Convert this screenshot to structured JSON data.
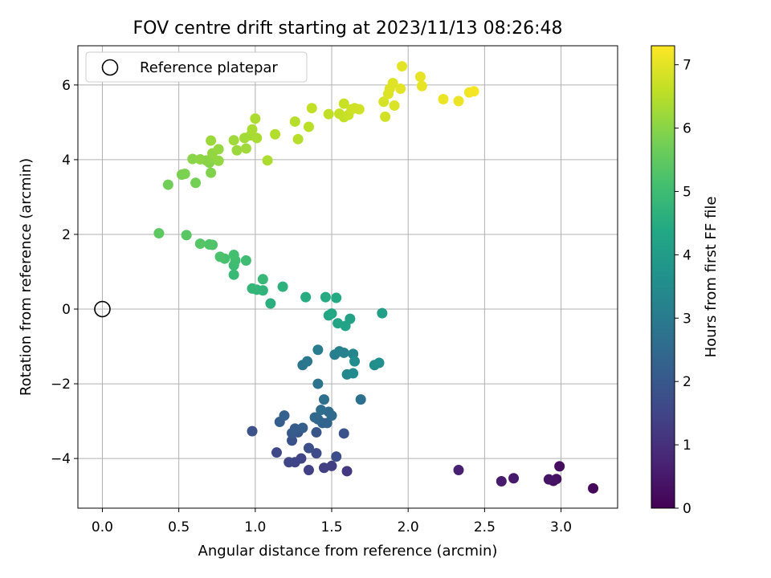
{
  "chart_data": {
    "type": "scatter",
    "title": "FOV centre drift starting at 2023/11/13 08:26:48",
    "xlabel": "Angular distance from reference (arcmin)",
    "ylabel": "Rotation from reference (arcmin)",
    "xlim": [
      -0.16,
      3.37
    ],
    "ylim": [
      -5.33,
      7.05
    ],
    "xticks": [
      "0.0",
      "0.5",
      "1.0",
      "1.5",
      "2.0",
      "2.5",
      "3.0"
    ],
    "xtick_values": [
      0,
      0.5,
      1.0,
      1.5,
      2.0,
      2.5,
      3.0
    ],
    "yticks": [
      "−4",
      "−2",
      "0",
      "2",
      "4",
      "6"
    ],
    "ytick_values": [
      -4,
      -2,
      0,
      2,
      4,
      6
    ],
    "grid": true,
    "legend": {
      "position": "top-left",
      "label": "Reference platepar"
    },
    "reference_point": {
      "x": 0.0,
      "y": 0.0
    },
    "colorbar": {
      "label": "Hours from first FF file",
      "range": [
        0,
        7.3
      ],
      "ticks": [
        "0",
        "1",
        "2",
        "3",
        "4",
        "5",
        "6",
        "7"
      ],
      "tick_values": [
        0,
        1,
        2,
        3,
        4,
        5,
        6,
        7
      ],
      "colormap": "viridis"
    },
    "points": [
      {
        "x": 3.21,
        "y": -4.8,
        "t": 0.15
      },
      {
        "x": 2.99,
        "y": -4.21,
        "t": 0.25
      },
      {
        "x": 2.97,
        "y": -4.55,
        "t": 0.3
      },
      {
        "x": 2.95,
        "y": -4.6,
        "t": 0.35
      },
      {
        "x": 2.92,
        "y": -4.56,
        "t": 0.4
      },
      {
        "x": 2.69,
        "y": -4.53,
        "t": 0.5
      },
      {
        "x": 2.61,
        "y": -4.61,
        "t": 0.55
      },
      {
        "x": 2.33,
        "y": -4.31,
        "t": 0.65
      },
      {
        "x": 1.6,
        "y": -4.34,
        "t": 1.2
      },
      {
        "x": 1.5,
        "y": -4.2,
        "t": 1.3
      },
      {
        "x": 1.45,
        "y": -4.25,
        "t": 1.35
      },
      {
        "x": 1.35,
        "y": -4.31,
        "t": 1.4
      },
      {
        "x": 1.3,
        "y": -4.0,
        "t": 1.45
      },
      {
        "x": 1.26,
        "y": -4.1,
        "t": 1.5
      },
      {
        "x": 1.22,
        "y": -4.1,
        "t": 1.55
      },
      {
        "x": 1.14,
        "y": -3.84,
        "t": 1.6
      },
      {
        "x": 1.4,
        "y": -3.86,
        "t": 1.65
      },
      {
        "x": 1.53,
        "y": -3.95,
        "t": 1.7
      },
      {
        "x": 1.35,
        "y": -3.72,
        "t": 1.75
      },
      {
        "x": 1.24,
        "y": -3.52,
        "t": 1.8
      },
      {
        "x": 0.98,
        "y": -3.27,
        "t": 1.85
      },
      {
        "x": 1.58,
        "y": -3.33,
        "t": 1.9
      },
      {
        "x": 1.4,
        "y": -3.3,
        "t": 1.95
      },
      {
        "x": 1.28,
        "y": -3.3,
        "t": 2.0
      },
      {
        "x": 1.24,
        "y": -3.32,
        "t": 2.05
      },
      {
        "x": 1.26,
        "y": -3.2,
        "t": 2.1
      },
      {
        "x": 1.31,
        "y": -3.18,
        "t": 2.15
      },
      {
        "x": 1.16,
        "y": -3.02,
        "t": 2.2
      },
      {
        "x": 1.19,
        "y": -2.85,
        "t": 2.25
      },
      {
        "x": 1.44,
        "y": -3.05,
        "t": 2.3
      },
      {
        "x": 1.47,
        "y": -3.05,
        "t": 2.35
      },
      {
        "x": 1.41,
        "y": -2.95,
        "t": 2.4
      },
      {
        "x": 1.39,
        "y": -2.9,
        "t": 2.45
      },
      {
        "x": 1.5,
        "y": -2.85,
        "t": 2.5
      },
      {
        "x": 1.48,
        "y": -2.75,
        "t": 2.55
      },
      {
        "x": 1.43,
        "y": -2.7,
        "t": 2.6
      },
      {
        "x": 1.45,
        "y": -2.42,
        "t": 2.65
      },
      {
        "x": 1.69,
        "y": -2.42,
        "t": 2.7
      },
      {
        "x": 1.41,
        "y": -2.0,
        "t": 2.75
      },
      {
        "x": 1.31,
        "y": -1.5,
        "t": 2.85
      },
      {
        "x": 1.34,
        "y": -1.4,
        "t": 2.9
      },
      {
        "x": 1.41,
        "y": -1.09,
        "t": 3.0
      },
      {
        "x": 1.52,
        "y": -1.22,
        "t": 3.1
      },
      {
        "x": 1.55,
        "y": -1.13,
        "t": 3.15
      },
      {
        "x": 1.58,
        "y": -1.17,
        "t": 3.2
      },
      {
        "x": 1.64,
        "y": -1.2,
        "t": 3.3
      },
      {
        "x": 1.6,
        "y": -1.75,
        "t": 3.4
      },
      {
        "x": 1.64,
        "y": -1.72,
        "t": 3.45
      },
      {
        "x": 1.65,
        "y": -1.4,
        "t": 3.5
      },
      {
        "x": 1.78,
        "y": -1.5,
        "t": 3.55
      },
      {
        "x": 1.81,
        "y": -1.44,
        "t": 3.6
      },
      {
        "x": 1.83,
        "y": -0.11,
        "t": 4.1
      },
      {
        "x": 1.62,
        "y": -0.26,
        "t": 4.15
      },
      {
        "x": 1.59,
        "y": -0.45,
        "t": 4.2
      },
      {
        "x": 1.54,
        "y": -0.38,
        "t": 4.25
      },
      {
        "x": 1.48,
        "y": -0.17,
        "t": 4.3
      },
      {
        "x": 1.5,
        "y": -0.12,
        "t": 4.35
      },
      {
        "x": 1.53,
        "y": 0.3,
        "t": 4.4
      },
      {
        "x": 1.46,
        "y": 0.32,
        "t": 4.45
      },
      {
        "x": 1.33,
        "y": 0.32,
        "t": 4.5
      },
      {
        "x": 1.1,
        "y": 0.15,
        "t": 4.6
      },
      {
        "x": 1.18,
        "y": 0.6,
        "t": 4.65
      },
      {
        "x": 1.05,
        "y": 0.5,
        "t": 4.7
      },
      {
        "x": 1.01,
        "y": 0.52,
        "t": 4.75
      },
      {
        "x": 0.98,
        "y": 0.55,
        "t": 4.8
      },
      {
        "x": 1.05,
        "y": 0.8,
        "t": 4.85
      },
      {
        "x": 0.86,
        "y": 0.92,
        "t": 4.9
      },
      {
        "x": 0.86,
        "y": 1.17,
        "t": 4.95
      },
      {
        "x": 0.94,
        "y": 1.3,
        "t": 5.0
      },
      {
        "x": 0.87,
        "y": 1.3,
        "t": 5.05
      },
      {
        "x": 0.86,
        "y": 1.45,
        "t": 5.1
      },
      {
        "x": 0.8,
        "y": 1.35,
        "t": 5.15
      },
      {
        "x": 0.77,
        "y": 1.4,
        "t": 5.2
      },
      {
        "x": 0.72,
        "y": 1.72,
        "t": 5.25
      },
      {
        "x": 0.7,
        "y": 1.73,
        "t": 5.3
      },
      {
        "x": 0.64,
        "y": 1.75,
        "t": 5.35
      },
      {
        "x": 0.55,
        "y": 1.98,
        "t": 5.4
      },
      {
        "x": 0.37,
        "y": 2.03,
        "t": 5.45
      },
      {
        "x": 0.43,
        "y": 3.33,
        "t": 5.7
      },
      {
        "x": 0.61,
        "y": 3.38,
        "t": 5.75
      },
      {
        "x": 0.52,
        "y": 3.6,
        "t": 5.8
      },
      {
        "x": 0.54,
        "y": 3.62,
        "t": 5.85
      },
      {
        "x": 0.71,
        "y": 3.65,
        "t": 5.9
      },
      {
        "x": 0.7,
        "y": 3.92,
        "t": 5.95
      },
      {
        "x": 0.68,
        "y": 3.98,
        "t": 6.0
      },
      {
        "x": 0.59,
        "y": 4.02,
        "t": 6.0
      },
      {
        "x": 0.64,
        "y": 4.01,
        "t": 6.05
      },
      {
        "x": 0.72,
        "y": 4.05,
        "t": 6.05
      },
      {
        "x": 0.76,
        "y": 3.97,
        "t": 6.1
      },
      {
        "x": 0.72,
        "y": 4.17,
        "t": 6.1
      },
      {
        "x": 0.76,
        "y": 4.28,
        "t": 6.15
      },
      {
        "x": 0.71,
        "y": 4.51,
        "t": 6.2
      },
      {
        "x": 0.88,
        "y": 4.25,
        "t": 6.2
      },
      {
        "x": 0.94,
        "y": 4.3,
        "t": 6.25
      },
      {
        "x": 0.86,
        "y": 4.52,
        "t": 6.25
      },
      {
        "x": 0.93,
        "y": 4.58,
        "t": 6.3
      },
      {
        "x": 0.97,
        "y": 4.65,
        "t": 6.3
      },
      {
        "x": 0.98,
        "y": 4.81,
        "t": 6.35
      },
      {
        "x": 1.01,
        "y": 4.58,
        "t": 6.35
      },
      {
        "x": 1.08,
        "y": 3.98,
        "t": 6.4
      },
      {
        "x": 1.0,
        "y": 5.1,
        "t": 6.4
      },
      {
        "x": 1.13,
        "y": 4.68,
        "t": 6.45
      },
      {
        "x": 1.28,
        "y": 4.55,
        "t": 6.5
      },
      {
        "x": 1.26,
        "y": 5.02,
        "t": 6.5
      },
      {
        "x": 1.35,
        "y": 4.88,
        "t": 6.55
      },
      {
        "x": 1.37,
        "y": 5.38,
        "t": 6.6
      },
      {
        "x": 1.48,
        "y": 5.22,
        "t": 6.6
      },
      {
        "x": 1.55,
        "y": 5.23,
        "t": 6.65
      },
      {
        "x": 1.58,
        "y": 5.14,
        "t": 6.65
      },
      {
        "x": 1.61,
        "y": 5.2,
        "t": 6.7
      },
      {
        "x": 1.58,
        "y": 5.5,
        "t": 6.7
      },
      {
        "x": 1.63,
        "y": 5.35,
        "t": 6.75
      },
      {
        "x": 1.65,
        "y": 5.38,
        "t": 6.75
      },
      {
        "x": 1.68,
        "y": 5.35,
        "t": 6.8
      },
      {
        "x": 1.85,
        "y": 5.15,
        "t": 6.8
      },
      {
        "x": 1.84,
        "y": 5.55,
        "t": 6.85
      },
      {
        "x": 1.91,
        "y": 5.45,
        "t": 6.9
      },
      {
        "x": 1.87,
        "y": 5.76,
        "t": 6.9
      },
      {
        "x": 1.88,
        "y": 5.9,
        "t": 6.95
      },
      {
        "x": 1.9,
        "y": 6.05,
        "t": 6.95
      },
      {
        "x": 1.95,
        "y": 5.9,
        "t": 7.0
      },
      {
        "x": 1.96,
        "y": 6.5,
        "t": 7.0
      },
      {
        "x": 2.08,
        "y": 6.22,
        "t": 7.05
      },
      {
        "x": 2.09,
        "y": 5.97,
        "t": 7.05
      },
      {
        "x": 2.23,
        "y": 5.62,
        "t": 7.1
      },
      {
        "x": 2.33,
        "y": 5.57,
        "t": 7.1
      },
      {
        "x": 2.4,
        "y": 5.8,
        "t": 7.15
      },
      {
        "x": 2.43,
        "y": 5.83,
        "t": 7.2
      }
    ]
  }
}
